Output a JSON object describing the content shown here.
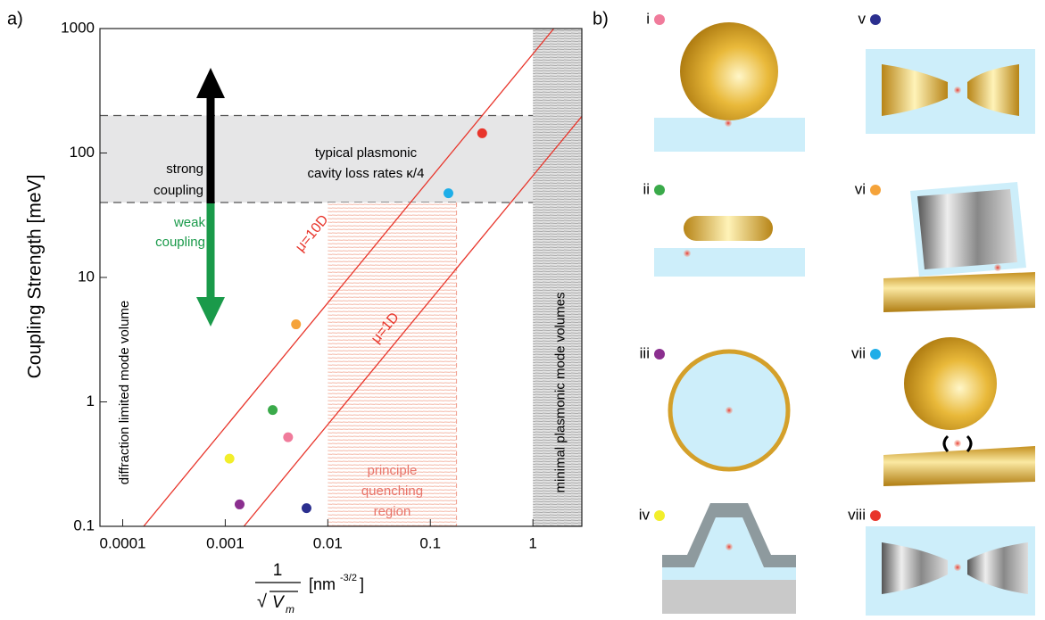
{
  "chart_data": {
    "type": "scatter",
    "panel_label": "a)",
    "y_label": "Coupling Strength  [meV]",
    "x_label": {
      "numerator": "1",
      "radical": "√",
      "symbol": "V",
      "subscript": "m",
      "unit": "[nm",
      "exponent": "-3/2",
      "close": "]"
    },
    "log_x": true,
    "log_y": true,
    "xlim": [
      6e-05,
      3
    ],
    "ylim": [
      0.1,
      1000
    ],
    "xticks": [
      0.0001,
      0.001,
      0.01,
      0.1,
      1
    ],
    "yticks": [
      0.1,
      1,
      10,
      100,
      1000
    ],
    "series": [
      {
        "name": "i",
        "color": "#f07b9b",
        "x": [
          0.0041
        ],
        "values": [
          0.52
        ]
      },
      {
        "name": "ii",
        "color": "#3aaa4a",
        "x": [
          0.0029
        ],
        "values": [
          0.86
        ]
      },
      {
        "name": "iii",
        "color": "#8b2f8f",
        "x": [
          0.00138
        ],
        "values": [
          0.15
        ]
      },
      {
        "name": "iv",
        "color": "#f2ee2a",
        "x": [
          0.0011
        ],
        "values": [
          0.35
        ]
      },
      {
        "name": "v",
        "color": "#2b2f8f",
        "x": [
          0.0062
        ],
        "values": [
          0.14
        ]
      },
      {
        "name": "vi",
        "color": "#f5a33a",
        "x": [
          0.0049
        ],
        "values": [
          4.2
        ]
      },
      {
        "name": "vii",
        "color": "#1eaee8",
        "x": [
          0.15
        ],
        "values": [
          47.5
        ]
      },
      {
        "name": "viii",
        "color": "#e8352b",
        "x": [
          0.32
        ],
        "values": [
          144
        ]
      }
    ],
    "lines": [
      {
        "name": "μ=10D",
        "color": "#e8352b",
        "x": [
          0.00016,
          1.6
        ],
        "values": [
          0.1,
          1000
        ]
      },
      {
        "name": "μ=1D",
        "color": "#e8352b",
        "x": [
          0.00152,
          3
        ],
        "values": [
          0.1,
          197
        ]
      }
    ],
    "band": {
      "y": [
        40,
        200
      ],
      "label": [
        "typical plasmonic",
        "cavity loss rates κ/4"
      ]
    },
    "regions": [
      {
        "x": [
          0.01,
          0.18
        ],
        "y": [
          0.1,
          40
        ],
        "label": [
          "principle",
          "quenching",
          "region"
        ]
      },
      {
        "x": [
          1,
          3
        ],
        "y": [
          0.1,
          1000
        ],
        "label": [
          "minimal plasmonic mode volumes"
        ]
      }
    ],
    "annotations": {
      "strong": [
        "strong",
        "coupling"
      ],
      "weak": [
        "weak",
        "coupling"
      ],
      "diffraction": "diffraction limited mode volume"
    }
  },
  "panel_b": {
    "label": "b)"
  }
}
